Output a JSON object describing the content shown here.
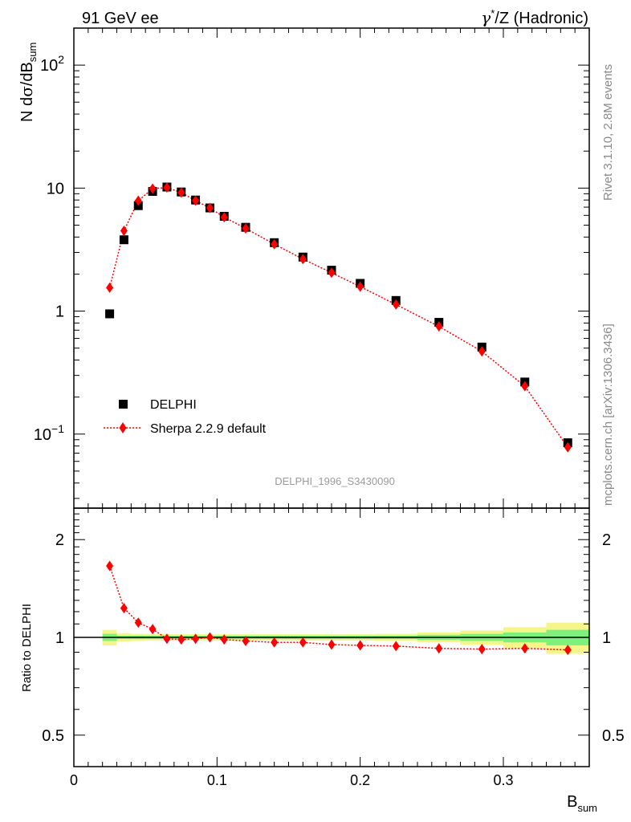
{
  "header": {
    "left": "91 GeV ee",
    "right_sup": "*",
    "right_tail": "/Z (Hadronic)"
  },
  "side_labels": {
    "rivet": "Rivet 3.1.10,  2.8M events",
    "mcplots": "mcplots.cern.ch [arXiv:1306.3436]"
  },
  "watermark": "DELPHI_1996_S3430090",
  "legend": {
    "data_label": "DELPHI",
    "mc_label": "Sherpa 2.2.9 default"
  },
  "axes": {
    "ylabel_main_prefix": "N d",
    "ylabel_main_mid": "/dB",
    "ylabel_main_sub": "sum",
    "ylabel_ratio": "Ratio to DELPHI",
    "xlabel_main": "B",
    "xlabel_sub": "sum",
    "x_ticks": [
      "0",
      "0.1",
      "0.2",
      "0.3"
    ],
    "y_main_ticks": [
      {
        "value": 0.1,
        "base": "10",
        "exp": "−1"
      },
      {
        "value": 1,
        "base": "1",
        "exp": ""
      },
      {
        "value": 10,
        "base": "10",
        "exp": ""
      },
      {
        "value": 100,
        "base": "10",
        "exp": "2"
      }
    ],
    "y_ratio_ticks": [
      "0.5",
      "1",
      "2"
    ]
  },
  "colors": {
    "data": "#000000",
    "mc": "#ff0000",
    "band_inner": "#7df07d",
    "band_outer": "#f5f58a"
  },
  "chart_data": [
    {
      "type": "scatter",
      "title": "",
      "xlabel": "B_sum",
      "ylabel": "N dσ/dB_sum",
      "yscale": "log",
      "xlim": [
        0,
        0.36
      ],
      "ylim": [
        0.025,
        200
      ],
      "grid": false,
      "legend_position": "bottom-left",
      "series": [
        {
          "name": "DELPHI",
          "style": "black-square-markers",
          "x": [
            0.025,
            0.035,
            0.045,
            0.055,
            0.065,
            0.075,
            0.085,
            0.095,
            0.105,
            0.12,
            0.14,
            0.16,
            0.18,
            0.2,
            0.225,
            0.255,
            0.285,
            0.315,
            0.345
          ],
          "y": [
            0.95,
            3.8,
            7.2,
            9.4,
            10.2,
            9.3,
            8.0,
            6.9,
            5.9,
            4.8,
            3.6,
            2.75,
            2.15,
            1.68,
            1.22,
            0.81,
            0.51,
            0.265,
            0.085
          ]
        },
        {
          "name": "Sherpa 2.2.9 default",
          "style": "red-diamond-dotted-line",
          "x": [
            0.025,
            0.035,
            0.045,
            0.055,
            0.065,
            0.075,
            0.085,
            0.095,
            0.105,
            0.12,
            0.14,
            0.16,
            0.18,
            0.2,
            0.225,
            0.255,
            0.285,
            0.315,
            0.345
          ],
          "y": [
            1.55,
            4.5,
            7.9,
            9.9,
            10.1,
            9.2,
            7.9,
            6.9,
            5.8,
            4.7,
            3.5,
            2.65,
            2.05,
            1.58,
            1.13,
            0.75,
            0.47,
            0.245,
            0.078
          ]
        }
      ]
    },
    {
      "type": "scatter",
      "title": "",
      "xlabel": "B_sum",
      "ylabel": "Ratio to DELPHI",
      "yscale": "log",
      "xlim": [
        0,
        0.36
      ],
      "ylim": [
        0.4,
        2.5
      ],
      "grid": false,
      "reference_line": 1,
      "uncertainty_band": {
        "edges": [
          0.02,
          0.03,
          0.04,
          0.05,
          0.06,
          0.07,
          0.08,
          0.09,
          0.1,
          0.11,
          0.13,
          0.15,
          0.17,
          0.19,
          0.21,
          0.24,
          0.27,
          0.3,
          0.33,
          0.36
        ],
        "inner": [
          0.025,
          0.012,
          0.012,
          0.012,
          0.012,
          0.012,
          0.012,
          0.012,
          0.012,
          0.012,
          0.012,
          0.012,
          0.012,
          0.012,
          0.012,
          0.018,
          0.025,
          0.035,
          0.055
        ],
        "outer": [
          0.055,
          0.03,
          0.025,
          0.022,
          0.022,
          0.022,
          0.022,
          0.022,
          0.022,
          0.022,
          0.022,
          0.022,
          0.022,
          0.022,
          0.025,
          0.035,
          0.05,
          0.075,
          0.11
        ]
      },
      "series": [
        {
          "name": "Sherpa 2.2.9 default",
          "x": [
            0.025,
            0.035,
            0.045,
            0.055,
            0.065,
            0.075,
            0.085,
            0.095,
            0.105,
            0.12,
            0.14,
            0.16,
            0.18,
            0.2,
            0.225,
            0.255,
            0.285,
            0.315,
            0.345
          ],
          "y": [
            1.66,
            1.23,
            1.11,
            1.06,
            0.99,
            0.985,
            0.99,
            1.0,
            0.985,
            0.975,
            0.965,
            0.965,
            0.95,
            0.945,
            0.94,
            0.925,
            0.92,
            0.925,
            0.915
          ]
        }
      ]
    }
  ]
}
